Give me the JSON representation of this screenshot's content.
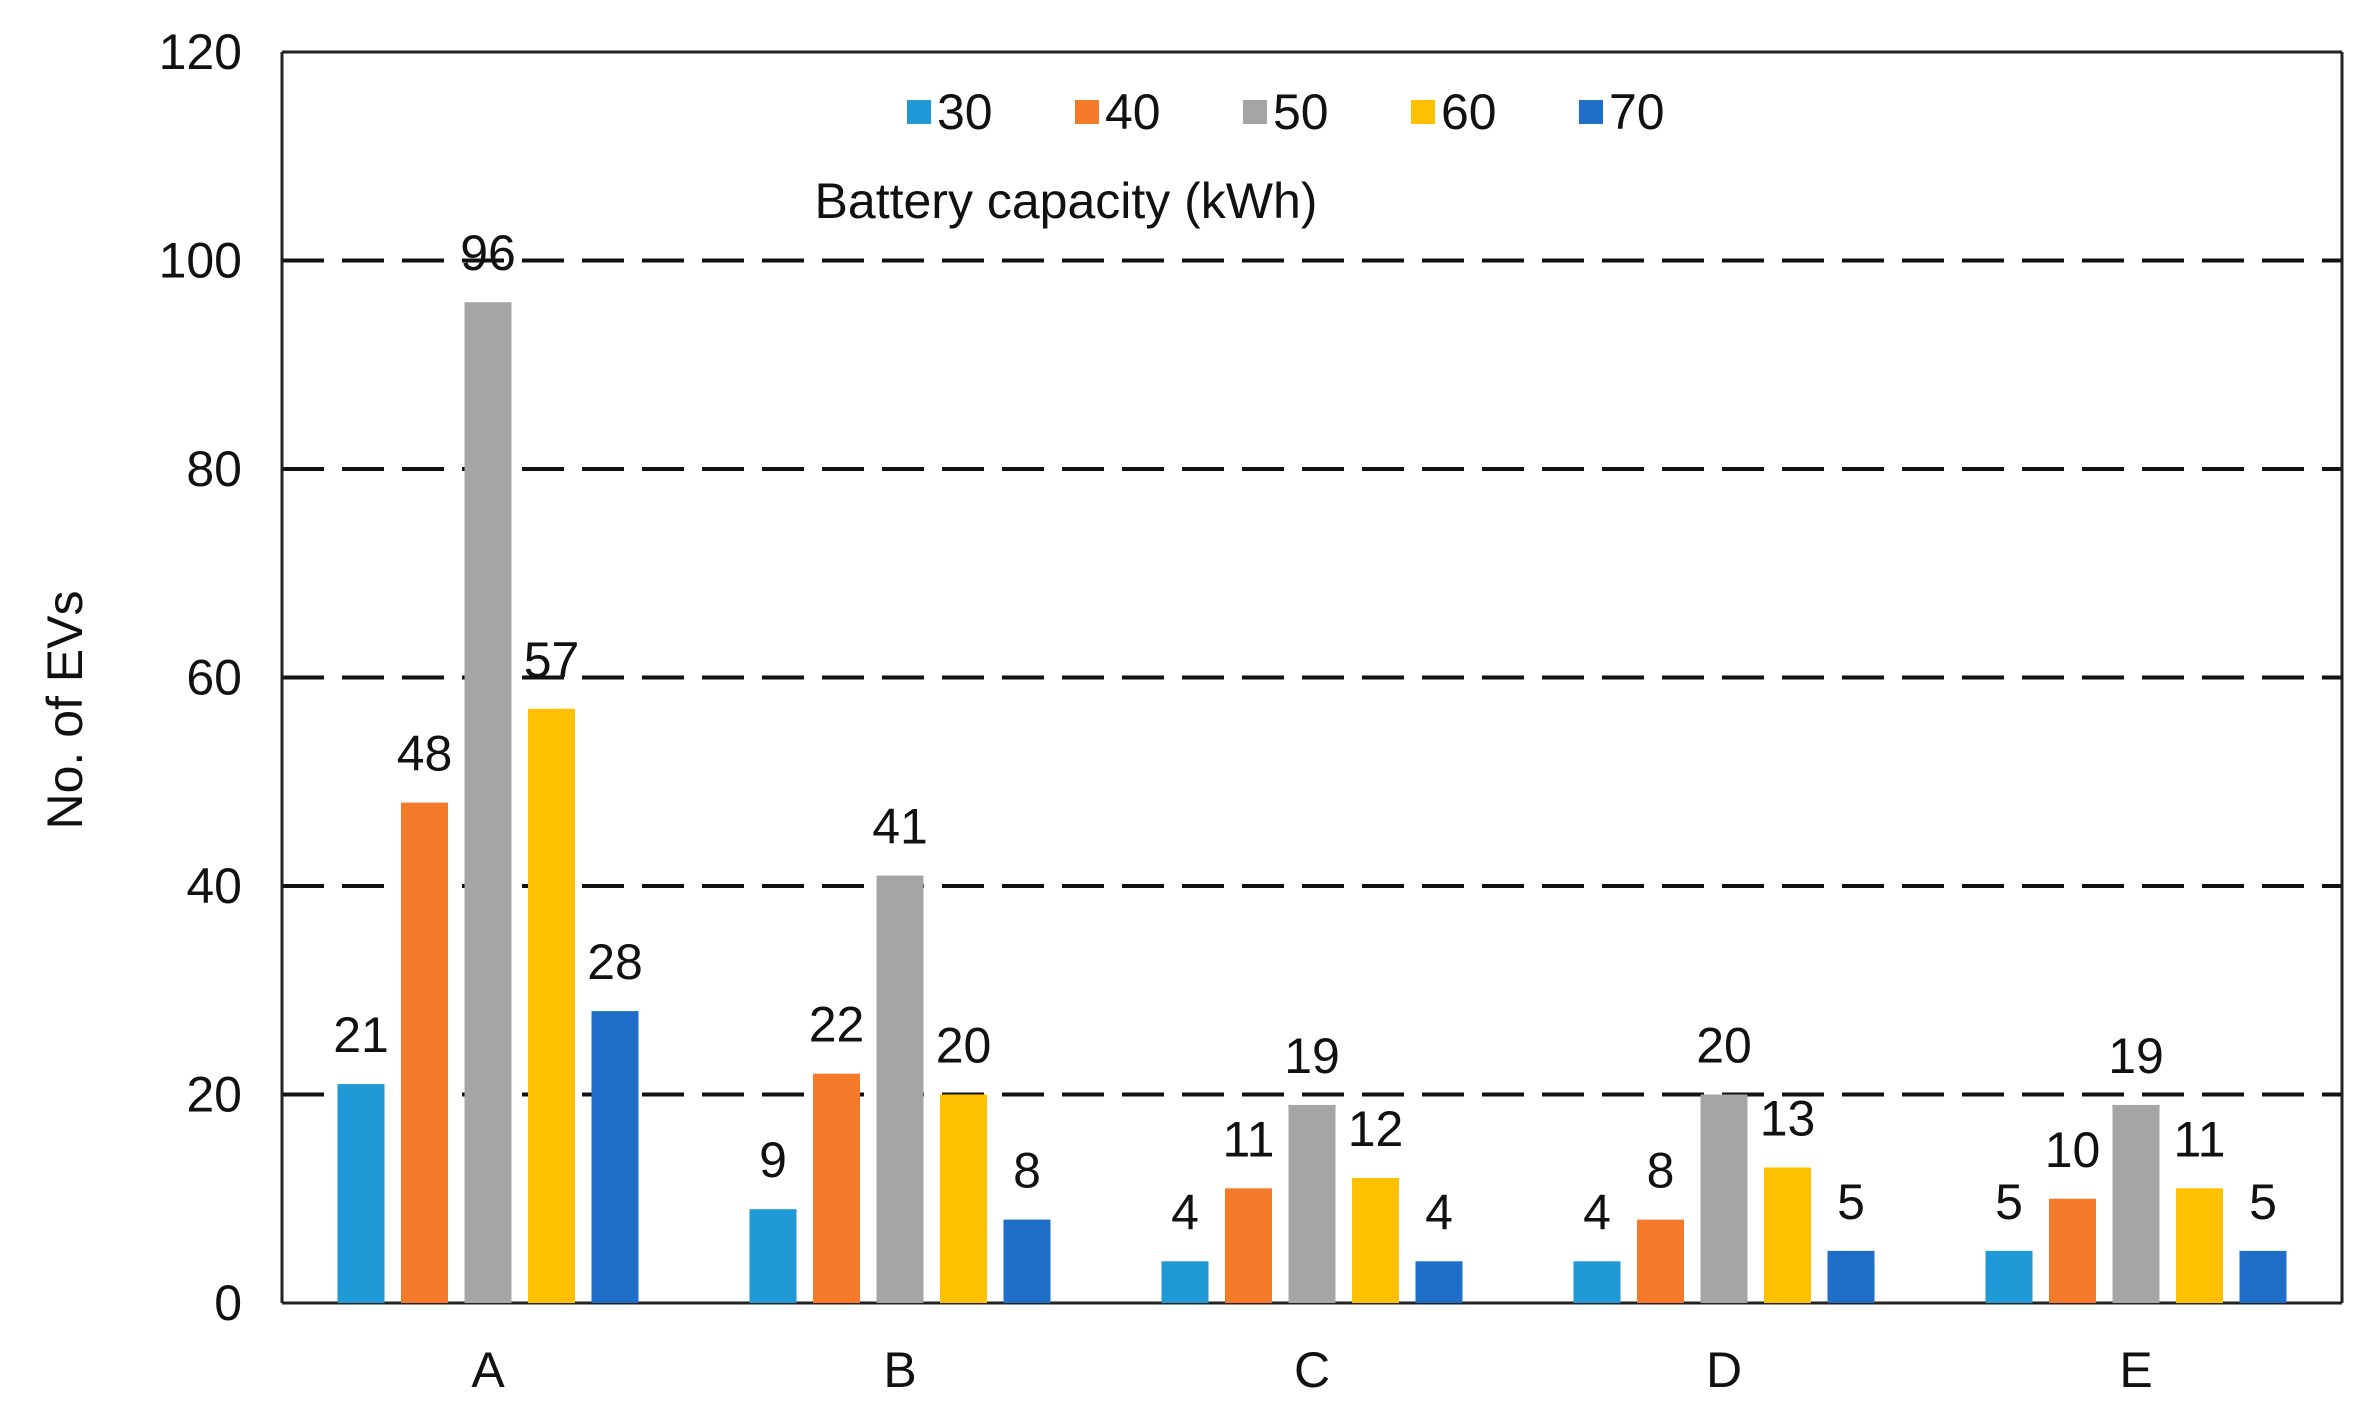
{
  "chart_data": {
    "type": "bar",
    "title": "",
    "xlabel": "",
    "ylabel": "No. of EVs",
    "ylim": [
      0,
      120
    ],
    "yticks": [
      0,
      20,
      40,
      60,
      80,
      100,
      120
    ],
    "ytick_labels": [
      "0",
      "20",
      "40",
      "60",
      "80",
      "100",
      "120"
    ],
    "categories": [
      "A",
      "B",
      "C",
      "D",
      "E"
    ],
    "grid": "dashed horizontal",
    "legend_title": "Battery capacity (kWh)",
    "legend_position": "top-center",
    "series": [
      {
        "name": "30",
        "color": "#1f9ad6",
        "values": [
          21,
          9,
          4,
          4,
          5
        ],
        "labels": [
          "21",
          "9",
          "4",
          "4",
          "5"
        ]
      },
      {
        "name": "40",
        "color": "#f47a2a",
        "values": [
          48,
          22,
          11,
          8,
          10
        ],
        "labels": [
          "48",
          "22",
          "11",
          "8",
          "10"
        ]
      },
      {
        "name": "50",
        "color": "#a5a5a5",
        "values": [
          96,
          41,
          19,
          20,
          19
        ],
        "labels": [
          "96",
          "41",
          "19",
          "20",
          "19"
        ]
      },
      {
        "name": "60",
        "color": "#ffc000",
        "values": [
          57,
          20,
          12,
          13,
          11
        ],
        "labels": [
          "57",
          "20",
          "12",
          "13",
          "11"
        ]
      },
      {
        "name": "70",
        "color": "#1f6fc8",
        "values": [
          28,
          8,
          4,
          5,
          5
        ],
        "labels": [
          "28",
          "8",
          "4",
          "5",
          "5"
        ]
      }
    ]
  }
}
